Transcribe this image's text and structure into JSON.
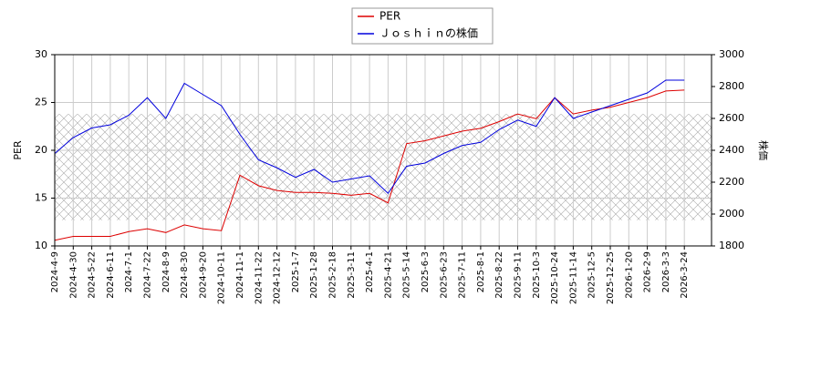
{
  "chart_data": {
    "type": "line",
    "x": [
      "2024-4-9",
      "2024-4-30",
      "2024-5-22",
      "2024-6-11",
      "2024-7-1",
      "2024-7-22",
      "2024-8-9",
      "2024-8-30",
      "2024-9-20",
      "2024-10-11",
      "2024-11-1",
      "2024-11-22",
      "2024-12-12",
      "2025-1-7",
      "2025-1-28",
      "2025-2-18",
      "2025-3-11",
      "2025-4-1",
      "2025-4-21",
      "2025-5-14",
      "2025-6-3",
      "2025-6-23",
      "2025-7-11",
      "2025-8-1",
      "2025-8-22",
      "2025-9-11",
      "2025-10-3",
      "2025-10-24",
      "2025-11-14",
      "2025-12-5",
      "2025-12-25",
      "2026-1-20",
      "2026-2-9",
      "2026-3-3",
      "2026-3-24"
    ],
    "ylabel": "PER",
    "y2label": "株価",
    "ylim": [
      10,
      30
    ],
    "yticks": [
      10,
      15,
      20,
      25,
      30
    ],
    "y2lim": [
      1800,
      3000
    ],
    "y2ticks": [
      1800,
      2000,
      2200,
      2400,
      2600,
      2800,
      3000
    ],
    "grid": true,
    "legend": "top",
    "band": [
      12.7,
      23.8
    ],
    "series": [
      {
        "name": "PER",
        "color": "#dd0000",
        "values": [
          10.6,
          11.0,
          11.0,
          11.0,
          11.5,
          11.8,
          11.4,
          12.2,
          11.8,
          11.6,
          17.4,
          16.3,
          15.8,
          15.6,
          15.6,
          15.5,
          15.3,
          15.5,
          14.5,
          20.7,
          21.0,
          21.5,
          22.0,
          22.3,
          23.0,
          23.8,
          23.3,
          25.5,
          23.8,
          24.2,
          24.5,
          25.0,
          25.5,
          26.2,
          26.3
        ]
      },
      {
        "name": "Ｊｏｓｈｉｎの株価",
        "color": "#0000dd",
        "axis": "y2",
        "values": [
          2380,
          2480,
          2540,
          2560,
          2620,
          2730,
          2600,
          2820,
          2750,
          2680,
          2500,
          2340,
          2290,
          2230,
          2280,
          2200,
          2220,
          2240,
          2130,
          2300,
          2320,
          2380,
          2430,
          2450,
          2530,
          2590,
          2550,
          2730,
          2600,
          2640,
          2680,
          2720,
          2760,
          2840,
          2840
        ]
      }
    ]
  }
}
